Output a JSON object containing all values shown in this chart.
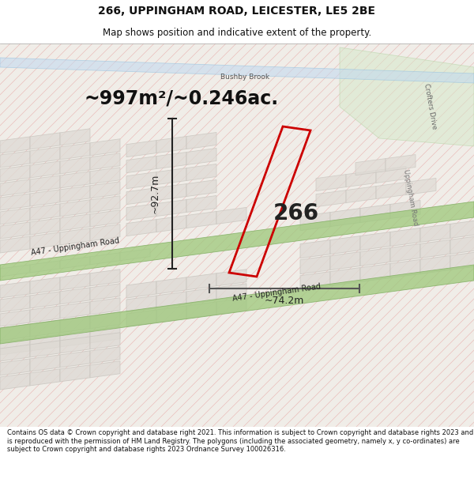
{
  "title": "266, UPPINGHAM ROAD, LEICESTER, LE5 2BE",
  "subtitle": "Map shows position and indicative extent of the property.",
  "area_text": "~997m²/~0.246ac.",
  "label_266": "266",
  "dim_vertical": "~92.7m",
  "dim_horizontal": "~74.2m",
  "road_label1": "A47 - Uppingham Road",
  "road_label2": "A47 - Uppingham Road",
  "brook_label": "Bushby Brook",
  "crofters_label": "Crofters Drive",
  "uppingham_road_label": "Uppingham Road",
  "footer_text": "Contains OS data © Crown copyright and database right 2021. This information is subject to Crown copyright and database rights 2023 and is reproduced with the permission of HM Land Registry. The polygons (including the associated geometry, namely x, y co-ordinates) are subject to Crown copyright and database rights 2023 Ordnance Survey 100026316.",
  "map_bg": "#f0ede8",
  "parcel_fill": "#dedad4",
  "parcel_edge": "#c8c4be",
  "green_road": "#9dc87a",
  "green_road_edge": "#7aaa5a",
  "brook_fill": "#c0d8f0",
  "property_color": "#cc0000",
  "dim_color": "#222222",
  "hatch_color": "#e8a8a8",
  "light_green_area": "#d4e8c8"
}
